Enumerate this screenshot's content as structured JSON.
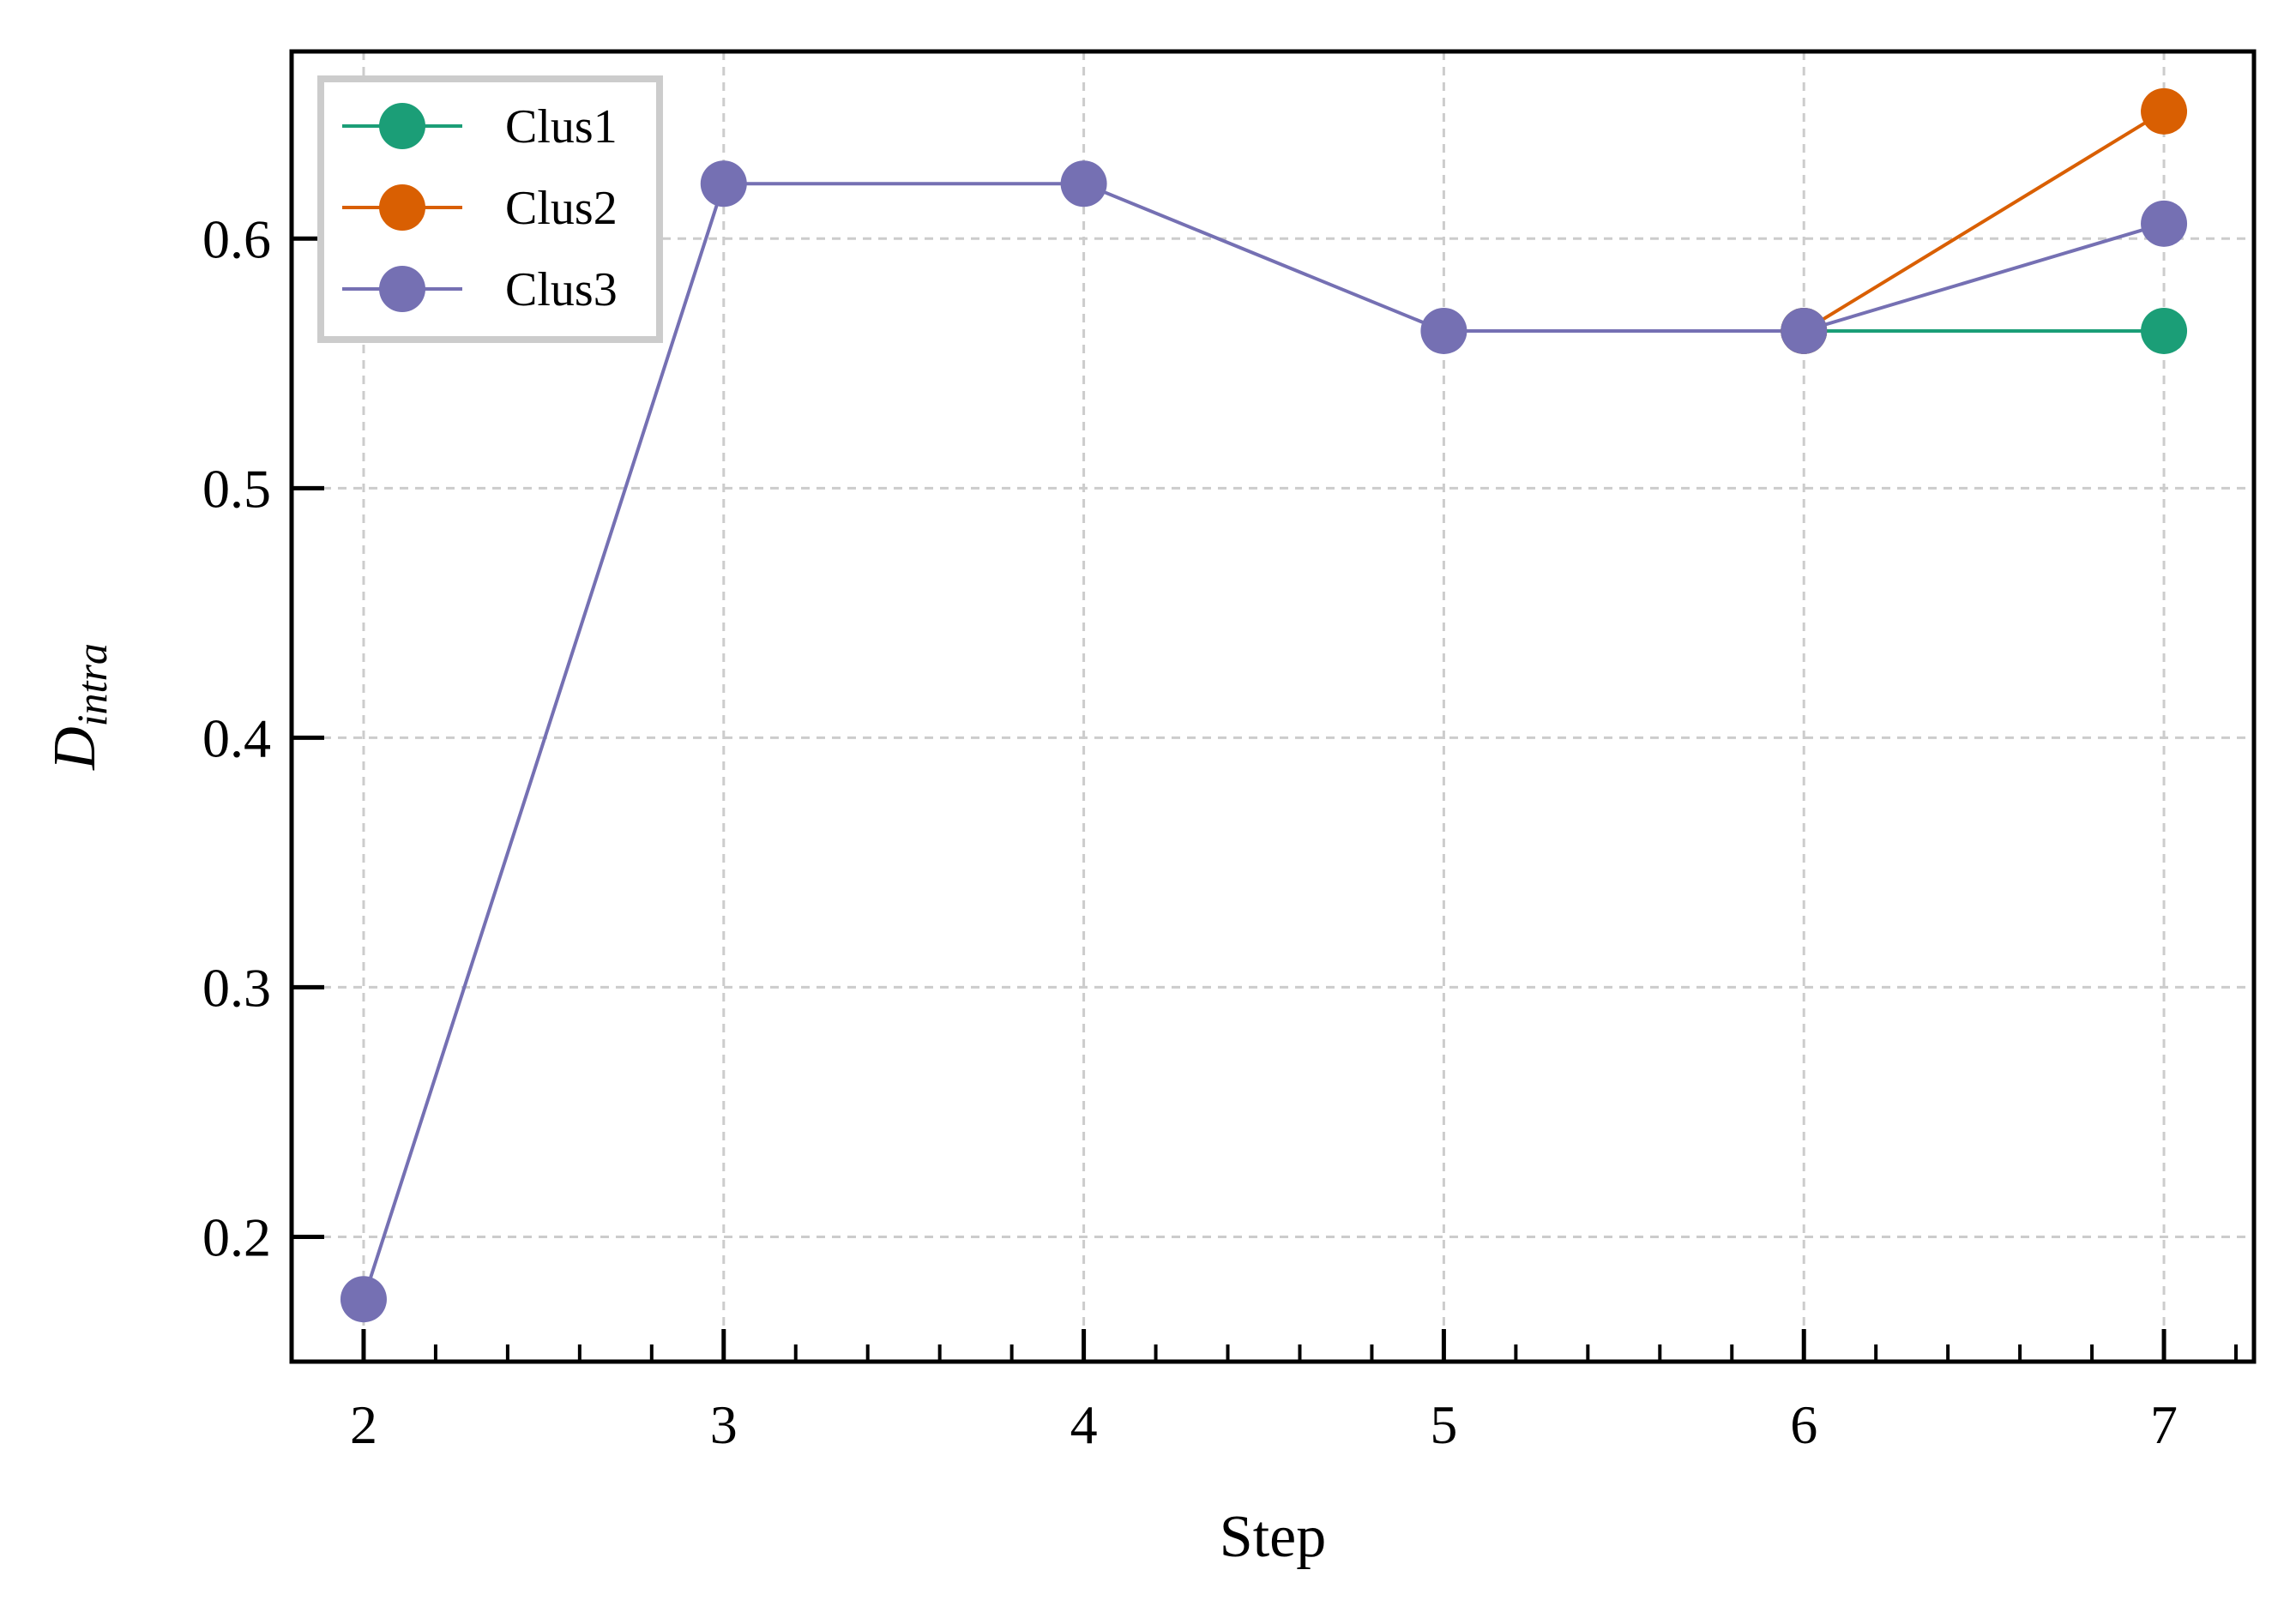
{
  "chart_data": {
    "type": "line",
    "xlabel": "Step",
    "ylabel": {
      "main": "D",
      "sub": "intra"
    },
    "x": [
      2,
      3,
      4,
      5,
      6,
      7
    ],
    "xlim": [
      1.8,
      7.25
    ],
    "ylim": [
      0.15,
      0.675
    ],
    "xticks": [
      2,
      3,
      4,
      5,
      6,
      7
    ],
    "xtick_labels": [
      "2",
      "3",
      "4",
      "5",
      "6",
      "7"
    ],
    "yticks": [
      0.2,
      0.3,
      0.4,
      0.5,
      0.6
    ],
    "ytick_labels": [
      "0.2",
      "0.3",
      "0.4",
      "0.5",
      "0.6"
    ],
    "grid": true,
    "legend_position": "top-left",
    "series": [
      {
        "name": "Clus1",
        "color": "#1b9e77",
        "x": [
          6,
          7
        ],
        "values": [
          0.563,
          0.563
        ]
      },
      {
        "name": "Clus2",
        "color": "#d95f02",
        "x": [
          6,
          7
        ],
        "values": [
          0.563,
          0.651
        ]
      },
      {
        "name": "Clus3",
        "color": "#7570b3",
        "x": [
          2,
          3,
          4,
          5,
          6,
          7
        ],
        "values": [
          0.175,
          0.622,
          0.622,
          0.563,
          0.563,
          0.606
        ]
      }
    ]
  }
}
